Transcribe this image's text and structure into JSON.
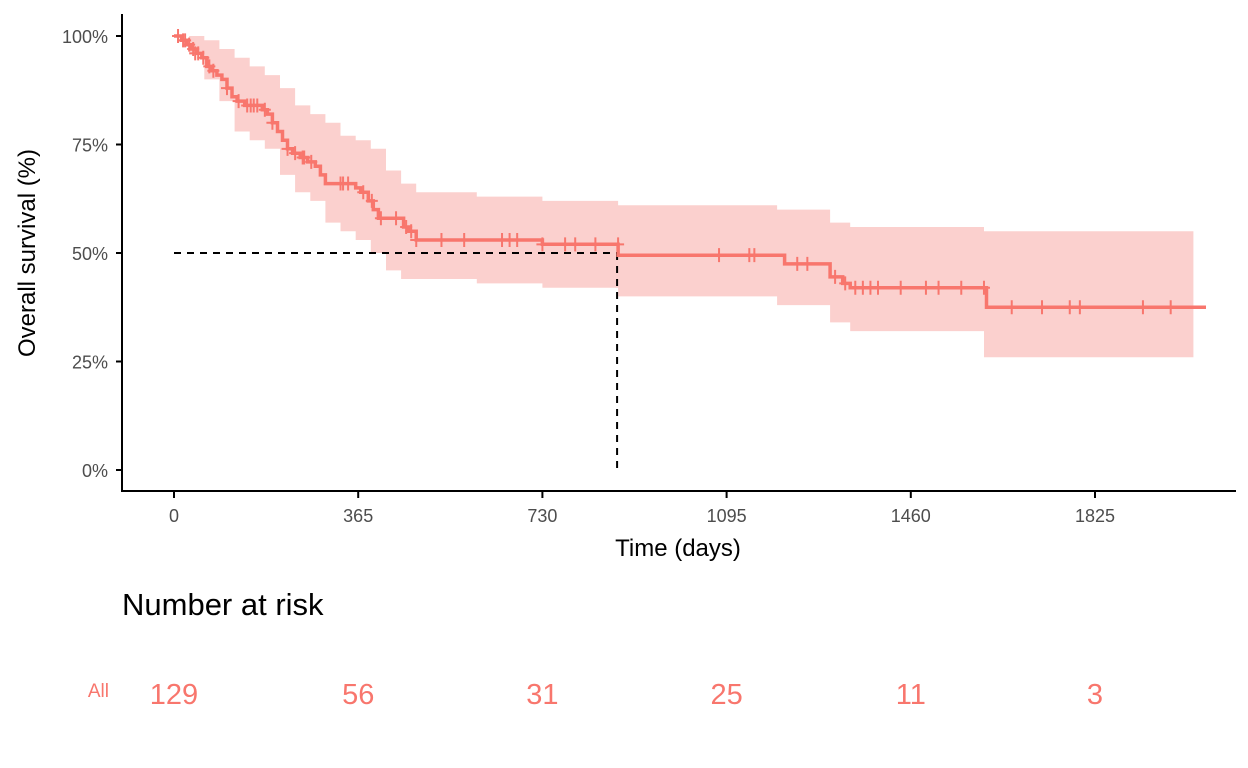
{
  "chart_data": {
    "type": "line",
    "subtype": "kaplan-meier",
    "xlabel": "Time (days)",
    "ylabel": "Overall survival (%)",
    "xlim": [
      -70,
      2150
    ],
    "ylim": [
      -0.05,
      1.03
    ],
    "x_ticks": [
      0,
      365,
      730,
      1095,
      1460,
      1825
    ],
    "y_ticks": [
      0,
      0.25,
      0.5,
      0.75,
      1.0
    ],
    "y_tick_labels": [
      "0%",
      "25%",
      "50%",
      "75%",
      "100%"
    ],
    "grid": false,
    "series": [
      {
        "name": "All",
        "color": "#F8766D",
        "ci_color": "#FBD0CE",
        "steps": [
          [
            0,
            1.0
          ],
          [
            15,
            0.99
          ],
          [
            25,
            0.98
          ],
          [
            35,
            0.97
          ],
          [
            45,
            0.96
          ],
          [
            55,
            0.95
          ],
          [
            65,
            0.93
          ],
          [
            75,
            0.92
          ],
          [
            85,
            0.91
          ],
          [
            95,
            0.9
          ],
          [
            105,
            0.88
          ],
          [
            115,
            0.86
          ],
          [
            125,
            0.85
          ],
          [
            140,
            0.84
          ],
          [
            160,
            0.84
          ],
          [
            175,
            0.83
          ],
          [
            185,
            0.82
          ],
          [
            195,
            0.8
          ],
          [
            205,
            0.78
          ],
          [
            215,
            0.76
          ],
          [
            225,
            0.74
          ],
          [
            235,
            0.73
          ],
          [
            250,
            0.72
          ],
          [
            265,
            0.71
          ],
          [
            280,
            0.7
          ],
          [
            290,
            0.68
          ],
          [
            300,
            0.66
          ],
          [
            350,
            0.66
          ],
          [
            360,
            0.65
          ],
          [
            370,
            0.64
          ],
          [
            385,
            0.62
          ],
          [
            395,
            0.6
          ],
          [
            405,
            0.58
          ],
          [
            455,
            0.56
          ],
          [
            465,
            0.55
          ],
          [
            480,
            0.53
          ],
          [
            730,
            0.52
          ],
          [
            870,
            0.52
          ],
          [
            880,
            0.495
          ],
          [
            1195,
            0.495
          ],
          [
            1210,
            0.475
          ],
          [
            1285,
            0.475
          ],
          [
            1300,
            0.445
          ],
          [
            1325,
            0.43
          ],
          [
            1340,
            0.42
          ],
          [
            1605,
            0.42
          ],
          [
            1610,
            0.375
          ],
          [
            2045,
            0.375
          ]
        ],
        "ci": [
          [
            0,
            1.0,
            1.0
          ],
          [
            30,
            1.0,
            0.96
          ],
          [
            60,
            0.99,
            0.9
          ],
          [
            90,
            0.97,
            0.85
          ],
          [
            120,
            0.95,
            0.78
          ],
          [
            150,
            0.93,
            0.76
          ],
          [
            180,
            0.91,
            0.74
          ],
          [
            210,
            0.88,
            0.68
          ],
          [
            240,
            0.84,
            0.64
          ],
          [
            270,
            0.82,
            0.62
          ],
          [
            300,
            0.8,
            0.57
          ],
          [
            330,
            0.77,
            0.55
          ],
          [
            360,
            0.76,
            0.53
          ],
          [
            390,
            0.74,
            0.5
          ],
          [
            420,
            0.69,
            0.46
          ],
          [
            450,
            0.66,
            0.44
          ],
          [
            480,
            0.64,
            0.44
          ],
          [
            600,
            0.63,
            0.43
          ],
          [
            730,
            0.62,
            0.42
          ],
          [
            880,
            0.61,
            0.4
          ],
          [
            1195,
            0.6,
            0.38
          ],
          [
            1300,
            0.57,
            0.34
          ],
          [
            1340,
            0.56,
            0.32
          ],
          [
            1605,
            0.55,
            0.26
          ],
          [
            2020,
            0.54,
            0.26
          ]
        ],
        "censor": [
          [
            8,
            1.0
          ],
          [
            18,
            0.99
          ],
          [
            22,
            0.99
          ],
          [
            30,
            0.98
          ],
          [
            38,
            0.97
          ],
          [
            42,
            0.96
          ],
          [
            48,
            0.96
          ],
          [
            58,
            0.95
          ],
          [
            70,
            0.93
          ],
          [
            78,
            0.92
          ],
          [
            105,
            0.88
          ],
          [
            128,
            0.85
          ],
          [
            145,
            0.84
          ],
          [
            152,
            0.84
          ],
          [
            158,
            0.84
          ],
          [
            165,
            0.84
          ],
          [
            180,
            0.83
          ],
          [
            195,
            0.8
          ],
          [
            225,
            0.74
          ],
          [
            240,
            0.73
          ],
          [
            255,
            0.72
          ],
          [
            258,
            0.72
          ],
          [
            272,
            0.71
          ],
          [
            330,
            0.66
          ],
          [
            335,
            0.66
          ],
          [
            345,
            0.66
          ],
          [
            375,
            0.64
          ],
          [
            392,
            0.62
          ],
          [
            410,
            0.58
          ],
          [
            440,
            0.58
          ],
          [
            460,
            0.56
          ],
          [
            470,
            0.55
          ],
          [
            480,
            0.53
          ],
          [
            530,
            0.53
          ],
          [
            575,
            0.53
          ],
          [
            650,
            0.53
          ],
          [
            665,
            0.53
          ],
          [
            680,
            0.53
          ],
          [
            730,
            0.52
          ],
          [
            775,
            0.52
          ],
          [
            795,
            0.52
          ],
          [
            835,
            0.52
          ],
          [
            880,
            0.52
          ],
          [
            1080,
            0.495
          ],
          [
            1140,
            0.495
          ],
          [
            1150,
            0.495
          ],
          [
            1235,
            0.475
          ],
          [
            1255,
            0.475
          ],
          [
            1310,
            0.445
          ],
          [
            1330,
            0.43
          ],
          [
            1350,
            0.42
          ],
          [
            1365,
            0.42
          ],
          [
            1380,
            0.42
          ],
          [
            1395,
            0.42
          ],
          [
            1440,
            0.42
          ],
          [
            1490,
            0.42
          ],
          [
            1515,
            0.42
          ],
          [
            1560,
            0.42
          ],
          [
            1605,
            0.42
          ],
          [
            1660,
            0.375
          ],
          [
            1720,
            0.375
          ],
          [
            1775,
            0.375
          ],
          [
            1795,
            0.375
          ],
          [
            1920,
            0.375
          ],
          [
            1975,
            0.375
          ]
        ]
      }
    ],
    "median_line": {
      "time": 878,
      "survival": 0.5
    }
  },
  "risk_table": {
    "title": "Number at risk",
    "strata_label": "All",
    "times": [
      0,
      365,
      730,
      1095,
      1460,
      1825
    ],
    "counts": [
      "129",
      "56",
      "31",
      "25",
      "11",
      "3"
    ]
  }
}
